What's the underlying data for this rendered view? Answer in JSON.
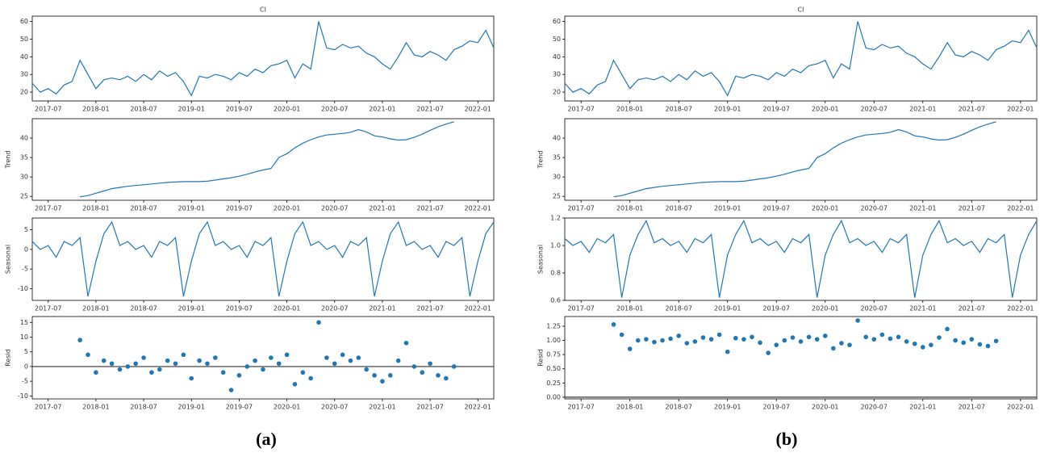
{
  "captions": [
    "(a)",
    "(b)"
  ],
  "chart_data": [
    {
      "type": "line",
      "title": "CI",
      "color": "#1f77b4",
      "x": [
        "2017-05",
        "2017-06",
        "2017-07",
        "2017-08",
        "2017-09",
        "2017-10",
        "2017-11",
        "2017-12",
        "2018-01",
        "2018-02",
        "2018-03",
        "2018-04",
        "2018-05",
        "2018-06",
        "2018-07",
        "2018-08",
        "2018-09",
        "2018-10",
        "2018-11",
        "2018-12",
        "2019-01",
        "2019-02",
        "2019-03",
        "2019-04",
        "2019-05",
        "2019-06",
        "2019-07",
        "2019-08",
        "2019-09",
        "2019-10",
        "2019-11",
        "2019-12",
        "2020-01",
        "2020-02",
        "2020-03",
        "2020-04",
        "2020-05",
        "2020-06",
        "2020-07",
        "2020-08",
        "2020-09",
        "2020-10",
        "2020-11",
        "2020-12",
        "2021-01",
        "2021-02",
        "2021-03",
        "2021-04",
        "2021-05",
        "2021-06",
        "2021-07",
        "2021-08",
        "2021-09",
        "2021-10",
        "2021-11",
        "2021-12",
        "2022-01",
        "2022-02",
        "2022-03"
      ],
      "values": [
        25,
        20,
        22,
        19,
        24,
        26,
        38,
        30,
        22,
        27,
        28,
        27,
        29,
        26,
        30,
        27,
        32,
        29,
        31,
        26,
        18,
        29,
        28,
        30,
        29,
        27,
        31,
        29,
        33,
        31,
        35,
        36,
        38,
        28,
        36,
        33,
        60,
        45,
        44,
        47,
        45,
        46,
        42,
        40,
        36,
        33,
        40,
        48,
        41,
        40,
        43,
        41,
        38,
        44,
        46,
        49,
        48,
        55,
        45
      ],
      "xlim": [
        "2017-05",
        "2022-03"
      ],
      "xticks": [
        "2017-07",
        "2018-01",
        "2018-07",
        "2019-01",
        "2019-07",
        "2020-01",
        "2020-07",
        "2021-01",
        "2021-07",
        "2022-01"
      ],
      "ylim": [
        15,
        63
      ],
      "yticks": [
        20,
        30,
        40,
        50,
        60
      ]
    },
    {
      "type": "line",
      "ylabel": "Trend",
      "color": "#1f77b4",
      "x": [
        "2017-05",
        "2017-06",
        "2017-07",
        "2017-08",
        "2017-09",
        "2017-10",
        "2017-11",
        "2017-12",
        "2018-01",
        "2018-02",
        "2018-03",
        "2018-04",
        "2018-05",
        "2018-06",
        "2018-07",
        "2018-08",
        "2018-09",
        "2018-10",
        "2018-11",
        "2018-12",
        "2019-01",
        "2019-02",
        "2019-03",
        "2019-04",
        "2019-05",
        "2019-06",
        "2019-07",
        "2019-08",
        "2019-09",
        "2019-10",
        "2019-11",
        "2019-12",
        "2020-01",
        "2020-02",
        "2020-03",
        "2020-04",
        "2020-05",
        "2020-06",
        "2020-07",
        "2020-08",
        "2020-09",
        "2020-10",
        "2020-11",
        "2020-12",
        "2021-01",
        "2021-02",
        "2021-03",
        "2021-04",
        "2021-05",
        "2021-06",
        "2021-07",
        "2021-08",
        "2021-09",
        "2021-10",
        "2021-11",
        "2021-12",
        "2022-01",
        "2022-02",
        "2022-03"
      ],
      "values": [
        null,
        null,
        null,
        null,
        null,
        null,
        24.9,
        25.2,
        25.8,
        26.4,
        27,
        27.3,
        27.6,
        27.8,
        28,
        28.2,
        28.4,
        28.6,
        28.7,
        28.8,
        28.8,
        28.8,
        28.9,
        29.2,
        29.5,
        29.8,
        30.2,
        30.7,
        31.3,
        31.8,
        32.2,
        35,
        36,
        37.5,
        38.7,
        39.6,
        40.3,
        40.8,
        41,
        41.2,
        41.5,
        42.2,
        41.6,
        40.6,
        40.3,
        39.8,
        39.5,
        39.6,
        40.2,
        41,
        42,
        42.9,
        43.6,
        44.2,
        null,
        null,
        null,
        null,
        null
      ],
      "xlim": [
        "2017-05",
        "2022-03"
      ],
      "xticks": [
        "2017-07",
        "2018-01",
        "2018-07",
        "2019-01",
        "2019-07",
        "2020-01",
        "2020-07",
        "2021-01",
        "2021-07",
        "2022-01"
      ],
      "ylim": [
        24,
        45
      ],
      "yticks": [
        25,
        30,
        35,
        40
      ]
    },
    {
      "type": "line",
      "ylabel": "Seasonal",
      "color": "#1f77b4",
      "x": [
        "2017-05",
        "2017-06",
        "2017-07",
        "2017-08",
        "2017-09",
        "2017-10",
        "2017-11",
        "2017-12",
        "2018-01",
        "2018-02",
        "2018-03",
        "2018-04",
        "2018-05",
        "2018-06",
        "2018-07",
        "2018-08",
        "2018-09",
        "2018-10",
        "2018-11",
        "2018-12",
        "2019-01",
        "2019-02",
        "2019-03",
        "2019-04",
        "2019-05",
        "2019-06",
        "2019-07",
        "2019-08",
        "2019-09",
        "2019-10",
        "2019-11",
        "2019-12",
        "2020-01",
        "2020-02",
        "2020-03",
        "2020-04",
        "2020-05",
        "2020-06",
        "2020-07",
        "2020-08",
        "2020-09",
        "2020-10",
        "2020-11",
        "2020-12",
        "2021-01",
        "2021-02",
        "2021-03",
        "2021-04",
        "2021-05",
        "2021-06",
        "2021-07",
        "2021-08",
        "2021-09",
        "2021-10",
        "2021-11",
        "2021-12",
        "2022-01",
        "2022-02",
        "2022-03"
      ],
      "values": [
        2,
        0,
        1,
        -2,
        2,
        1,
        3,
        -12,
        -3,
        4,
        7,
        1,
        2,
        0,
        1,
        -2,
        2,
        1,
        3,
        -12,
        -3,
        4,
        7,
        1,
        2,
        0,
        1,
        -2,
        2,
        1,
        3,
        -12,
        -3,
        4,
        7,
        1,
        2,
        0,
        1,
        -2,
        2,
        1,
        3,
        -12,
        -3,
        4,
        7,
        1,
        2,
        0,
        1,
        -2,
        2,
        1,
        3,
        -12,
        -3,
        4,
        7
      ],
      "xlim": [
        "2017-05",
        "2022-03"
      ],
      "xticks": [
        "2017-07",
        "2018-01",
        "2018-07",
        "2019-01",
        "2019-07",
        "2020-01",
        "2020-07",
        "2021-01",
        "2021-07",
        "2022-01"
      ],
      "ylim": [
        -13,
        8
      ],
      "yticks": [
        -10,
        -5,
        0,
        5
      ]
    },
    {
      "type": "scatter",
      "ylabel": "Resid",
      "color": "#1f77b4",
      "x": [
        "2017-05",
        "2017-06",
        "2017-07",
        "2017-08",
        "2017-09",
        "2017-10",
        "2017-11",
        "2017-12",
        "2018-01",
        "2018-02",
        "2018-03",
        "2018-04",
        "2018-05",
        "2018-06",
        "2018-07",
        "2018-08",
        "2018-09",
        "2018-10",
        "2018-11",
        "2018-12",
        "2019-01",
        "2019-02",
        "2019-03",
        "2019-04",
        "2019-05",
        "2019-06",
        "2019-07",
        "2019-08",
        "2019-09",
        "2019-10",
        "2019-11",
        "2019-12",
        "2020-01",
        "2020-02",
        "2020-03",
        "2020-04",
        "2020-05",
        "2020-06",
        "2020-07",
        "2020-08",
        "2020-09",
        "2020-10",
        "2020-11",
        "2020-12",
        "2021-01",
        "2021-02",
        "2021-03",
        "2021-04",
        "2021-05",
        "2021-06",
        "2021-07",
        "2021-08",
        "2021-09",
        "2021-10",
        "2021-11",
        "2021-12",
        "2022-01",
        "2022-02",
        "2022-03"
      ],
      "values": [
        null,
        null,
        null,
        null,
        null,
        null,
        9,
        4,
        -2,
        2,
        1,
        -1,
        0,
        1,
        3,
        -2,
        -1,
        2,
        1,
        4,
        -4,
        2,
        1,
        3,
        -2,
        -8,
        -3,
        0,
        2,
        -1,
        3,
        1,
        4,
        -6,
        -2,
        -4,
        15,
        3,
        1,
        4,
        2,
        3,
        -1,
        -3,
        -5,
        -3,
        2,
        8,
        0,
        -2,
        1,
        -3,
        -4,
        0,
        null,
        null,
        null,
        null,
        null
      ],
      "xlim": [
        "2017-05",
        "2022-03"
      ],
      "xticks": [
        "2017-07",
        "2018-01",
        "2018-07",
        "2019-01",
        "2019-07",
        "2020-01",
        "2020-07",
        "2021-01",
        "2021-07",
        "2022-01"
      ],
      "ylim": [
        -11,
        17
      ],
      "yticks": [
        -10,
        -5,
        0,
        5,
        10,
        15
      ]
    },
    {
      "type": "line",
      "title": "CI",
      "color": "#1f77b4",
      "x": [
        "2017-05",
        "2017-06",
        "2017-07",
        "2017-08",
        "2017-09",
        "2017-10",
        "2017-11",
        "2017-12",
        "2018-01",
        "2018-02",
        "2018-03",
        "2018-04",
        "2018-05",
        "2018-06",
        "2018-07",
        "2018-08",
        "2018-09",
        "2018-10",
        "2018-11",
        "2018-12",
        "2019-01",
        "2019-02",
        "2019-03",
        "2019-04",
        "2019-05",
        "2019-06",
        "2019-07",
        "2019-08",
        "2019-09",
        "2019-10",
        "2019-11",
        "2019-12",
        "2020-01",
        "2020-02",
        "2020-03",
        "2020-04",
        "2020-05",
        "2020-06",
        "2020-07",
        "2020-08",
        "2020-09",
        "2020-10",
        "2020-11",
        "2020-12",
        "2021-01",
        "2021-02",
        "2021-03",
        "2021-04",
        "2021-05",
        "2021-06",
        "2021-07",
        "2021-08",
        "2021-09",
        "2021-10",
        "2021-11",
        "2021-12",
        "2022-01",
        "2022-02",
        "2022-03"
      ],
      "values": [
        25,
        20,
        22,
        19,
        24,
        26,
        38,
        30,
        22,
        27,
        28,
        27,
        29,
        26,
        30,
        27,
        32,
        29,
        31,
        26,
        18,
        29,
        28,
        30,
        29,
        27,
        31,
        29,
        33,
        31,
        35,
        36,
        38,
        28,
        36,
        33,
        60,
        45,
        44,
        47,
        45,
        46,
        42,
        40,
        36,
        33,
        40,
        48,
        41,
        40,
        43,
        41,
        38,
        44,
        46,
        49,
        48,
        55,
        45
      ],
      "xlim": [
        "2017-05",
        "2022-03"
      ],
      "xticks": [
        "2017-07",
        "2018-01",
        "2018-07",
        "2019-01",
        "2019-07",
        "2020-01",
        "2020-07",
        "2021-01",
        "2021-07",
        "2022-01"
      ],
      "ylim": [
        15,
        63
      ],
      "yticks": [
        20,
        30,
        40,
        50,
        60
      ]
    },
    {
      "type": "line",
      "ylabel": "Trend",
      "color": "#1f77b4",
      "x": [
        "2017-05",
        "2017-06",
        "2017-07",
        "2017-08",
        "2017-09",
        "2017-10",
        "2017-11",
        "2017-12",
        "2018-01",
        "2018-02",
        "2018-03",
        "2018-04",
        "2018-05",
        "2018-06",
        "2018-07",
        "2018-08",
        "2018-09",
        "2018-10",
        "2018-11",
        "2018-12",
        "2019-01",
        "2019-02",
        "2019-03",
        "2019-04",
        "2019-05",
        "2019-06",
        "2019-07",
        "2019-08",
        "2019-09",
        "2019-10",
        "2019-11",
        "2019-12",
        "2020-01",
        "2020-02",
        "2020-03",
        "2020-04",
        "2020-05",
        "2020-06",
        "2020-07",
        "2020-08",
        "2020-09",
        "2020-10",
        "2020-11",
        "2020-12",
        "2021-01",
        "2021-02",
        "2021-03",
        "2021-04",
        "2021-05",
        "2021-06",
        "2021-07",
        "2021-08",
        "2021-09",
        "2021-10",
        "2021-11",
        "2021-12",
        "2022-01",
        "2022-02",
        "2022-03"
      ],
      "values": [
        null,
        null,
        null,
        null,
        null,
        null,
        24.9,
        25.2,
        25.8,
        26.4,
        27,
        27.3,
        27.6,
        27.8,
        28,
        28.2,
        28.4,
        28.6,
        28.7,
        28.8,
        28.8,
        28.8,
        28.9,
        29.2,
        29.5,
        29.8,
        30.2,
        30.7,
        31.3,
        31.8,
        32.2,
        35,
        36,
        37.5,
        38.7,
        39.6,
        40.3,
        40.8,
        41,
        41.2,
        41.5,
        42.2,
        41.6,
        40.6,
        40.3,
        39.8,
        39.5,
        39.6,
        40.2,
        41,
        42,
        42.9,
        43.6,
        44.2,
        null,
        null,
        null,
        null,
        null
      ],
      "xlim": [
        "2017-05",
        "2022-03"
      ],
      "xticks": [
        "2017-07",
        "2018-01",
        "2018-07",
        "2019-01",
        "2019-07",
        "2020-01",
        "2020-07",
        "2021-01",
        "2021-07",
        "2022-01"
      ],
      "ylim": [
        24,
        45
      ],
      "yticks": [
        25,
        30,
        35,
        40
      ]
    },
    {
      "type": "line",
      "ylabel": "Seasonal",
      "color": "#1f77b4",
      "x": [
        "2017-05",
        "2017-06",
        "2017-07",
        "2017-08",
        "2017-09",
        "2017-10",
        "2017-11",
        "2017-12",
        "2018-01",
        "2018-02",
        "2018-03",
        "2018-04",
        "2018-05",
        "2018-06",
        "2018-07",
        "2018-08",
        "2018-09",
        "2018-10",
        "2018-11",
        "2018-12",
        "2019-01",
        "2019-02",
        "2019-03",
        "2019-04",
        "2019-05",
        "2019-06",
        "2019-07",
        "2019-08",
        "2019-09",
        "2019-10",
        "2019-11",
        "2019-12",
        "2020-01",
        "2020-02",
        "2020-03",
        "2020-04",
        "2020-05",
        "2020-06",
        "2020-07",
        "2020-08",
        "2020-09",
        "2020-10",
        "2020-11",
        "2020-12",
        "2021-01",
        "2021-02",
        "2021-03",
        "2021-04",
        "2021-05",
        "2021-06",
        "2021-07",
        "2021-08",
        "2021-09",
        "2021-10",
        "2021-11",
        "2021-12",
        "2022-01",
        "2022-02",
        "2022-03"
      ],
      "values": [
        1.05,
        1.0,
        1.03,
        0.95,
        1.05,
        1.02,
        1.08,
        0.62,
        0.93,
        1.08,
        1.18,
        1.02,
        1.05,
        1.0,
        1.03,
        0.95,
        1.05,
        1.02,
        1.08,
        0.62,
        0.93,
        1.08,
        1.18,
        1.02,
        1.05,
        1.0,
        1.03,
        0.95,
        1.05,
        1.02,
        1.08,
        0.62,
        0.93,
        1.08,
        1.18,
        1.02,
        1.05,
        1.0,
        1.03,
        0.95,
        1.05,
        1.02,
        1.08,
        0.62,
        0.93,
        1.08,
        1.18,
        1.02,
        1.05,
        1.0,
        1.03,
        0.95,
        1.05,
        1.02,
        1.08,
        0.62,
        0.93,
        1.08,
        1.18
      ],
      "xlim": [
        "2017-05",
        "2022-03"
      ],
      "xticks": [
        "2017-07",
        "2018-01",
        "2018-07",
        "2019-01",
        "2019-07",
        "2020-01",
        "2020-07",
        "2021-01",
        "2021-07",
        "2022-01"
      ],
      "ylim": [
        0.6,
        1.2
      ],
      "yticks": [
        0.6,
        0.8,
        {
          "value": 1,
          "label": "1.0"
        },
        1.2
      ]
    },
    {
      "type": "scatter",
      "ylabel": "Resid",
      "color": "#1f77b4",
      "x": [
        "2017-05",
        "2017-06",
        "2017-07",
        "2017-08",
        "2017-09",
        "2017-10",
        "2017-11",
        "2017-12",
        "2018-01",
        "2018-02",
        "2018-03",
        "2018-04",
        "2018-05",
        "2018-06",
        "2018-07",
        "2018-08",
        "2018-09",
        "2018-10",
        "2018-11",
        "2018-12",
        "2019-01",
        "2019-02",
        "2019-03",
        "2019-04",
        "2019-05",
        "2019-06",
        "2019-07",
        "2019-08",
        "2019-09",
        "2019-10",
        "2019-11",
        "2019-12",
        "2020-01",
        "2020-02",
        "2020-03",
        "2020-04",
        "2020-05",
        "2020-06",
        "2020-07",
        "2020-08",
        "2020-09",
        "2020-10",
        "2020-11",
        "2020-12",
        "2021-01",
        "2021-02",
        "2021-03",
        "2021-04",
        "2021-05",
        "2021-06",
        "2021-07",
        "2021-08",
        "2021-09",
        "2021-10",
        "2021-11",
        "2021-12",
        "2022-01",
        "2022-02",
        "2022-03"
      ],
      "values": [
        null,
        null,
        null,
        null,
        null,
        null,
        1.28,
        1.1,
        0.85,
        1.0,
        1.02,
        0.97,
        1.0,
        1.03,
        1.08,
        0.95,
        0.98,
        1.05,
        1.02,
        1.1,
        0.8,
        1.04,
        1.02,
        1.06,
        0.96,
        0.78,
        0.92,
        1.0,
        1.05,
        0.98,
        1.06,
        1.02,
        1.08,
        0.86,
        0.95,
        0.92,
        1.35,
        1.06,
        1.02,
        1.1,
        1.03,
        1.06,
        0.98,
        0.94,
        0.88,
        0.92,
        1.05,
        1.2,
        1.0,
        0.96,
        1.02,
        0.93,
        0.9,
        0.99,
        null,
        null,
        null,
        null,
        null
      ],
      "xlim": [
        "2017-05",
        "2022-03"
      ],
      "xticks": [
        "2017-07",
        "2018-01",
        "2018-07",
        "2019-01",
        "2019-07",
        "2020-01",
        "2020-07",
        "2021-01",
        "2021-07",
        "2022-01"
      ],
      "ylim": [
        -0.03,
        1.42
      ],
      "yticks": [
        {
          "value": 0,
          "label": "0.00"
        },
        {
          "value": 0.25,
          "label": "0.25"
        },
        {
          "value": 0.5,
          "label": "0.50"
        },
        {
          "value": 0.75,
          "label": "0.75"
        },
        {
          "value": 1,
          "label": "1.00"
        },
        {
          "value": 1.25,
          "label": "1.25"
        }
      ]
    }
  ]
}
